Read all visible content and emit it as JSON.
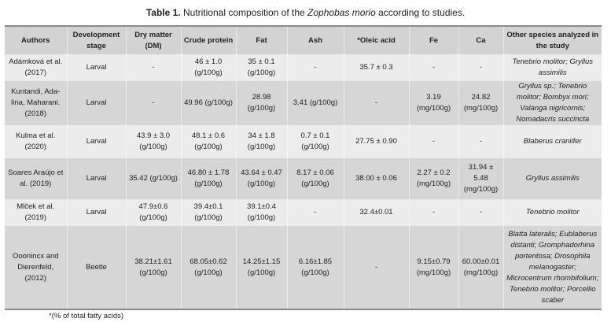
{
  "title": {
    "label": "Table 1.",
    "text_before": " Nutritional composition of the ",
    "species": "Zophobas morio",
    "text_after": " according to studies."
  },
  "headers": [
    "Authors",
    "Development stage",
    "Dry matter (DM)",
    "Crude protein",
    "Fat",
    "Ash",
    "*Oleic acid",
    "Fe",
    "Ca",
    "Other species analyzed in the study"
  ],
  "rows": [
    {
      "authors": "Adámková et al. (2017)",
      "stage": "Larval",
      "dm": "-",
      "cp": "46 ± 1.0 (g/100g)",
      "fat": "35 ± 0.1 (g/100g)",
      "ash": "-",
      "oleic": "35.7 ± 0.3",
      "fe": "-",
      "ca": "-",
      "other": "Tenebrio molitor; Gryllus assimilis"
    },
    {
      "authors": "Kuntandi, Ada-lina, Maharani. (2018)",
      "stage": "Larval",
      "dm": "-",
      "cp": "49.96 (g/100g)",
      "fat": "28.98 (g/100g)",
      "ash": "3.41 (g/100g)",
      "oleic": "-",
      "fe": "3.19 (mg/100g)",
      "ca": "24.82 (mg/100g)",
      "other": "Gryllus sp.; Tenebrio molitor; Bombyx mori; Valanga nigricornis; Nomadacris succincta"
    },
    {
      "authors": "Kulma et al. (2020)",
      "stage": "Larval",
      "dm": "43.9 ± 3.0 (g/100g)",
      "cp": "48.1 ± 0.6 (g/100g)",
      "fat": "34 ± 1.8 (g/100g)",
      "ash": "0.7 ± 0.1 (g/100g)",
      "oleic": "27.75 ± 0.90",
      "fe": "-",
      "ca": "-",
      "other": "Blaberus craniifer"
    },
    {
      "authors": "Soares Araújo et al. (2019)",
      "stage": "Larval",
      "dm": "35.42 (g/100g)",
      "cp": "46.80 ± 1.78 (g/100g)",
      "fat": "43.64 ± 0.47 (g/100g)",
      "ash": "8.17 ± 0.06 (g/100g)",
      "oleic": "38.00 ± 0.06",
      "fe": "2.27 ± 0.2 (mg/100g)",
      "ca": "31.94 ± 5.48 (mg/100g)",
      "other": "Gryllus assimilis"
    },
    {
      "authors": "Mlček et al. (2019)",
      "stage": "Larval",
      "dm": "47.9±0.6 (g/100g)",
      "cp": "39.4±0.1 (g/100g)",
      "fat": "39.1±0.4 (g/100g)",
      "ash": "-",
      "oleic": "32.4±0.01",
      "fe": "-",
      "ca": "-",
      "other": "Tenebrio molitor"
    },
    {
      "authors": "Ooonincx and Dierenfeld, (2012)",
      "stage": "Beetle",
      "dm": "38.21±1.61 (g/100g)",
      "cp": "68.05±0.62 (g/100g)",
      "fat": "14.25±1.15 (g/100g)",
      "ash": "6.16±1.85 (g/100g)",
      "oleic": "-",
      "fe": "9.15±0.79 (mg/100g)",
      "ca": "60.00±0.01 (mg/100g)",
      "other": "Blatta lateralis; Eublaberus distanti; Gromphadorhina portentosa; Drosophila melanogaster; Microcentrum rhombifolium; Tenebrio molitor; Porcellio scaber"
    }
  ],
  "footnote": "*(% of total fatty acids)"
}
